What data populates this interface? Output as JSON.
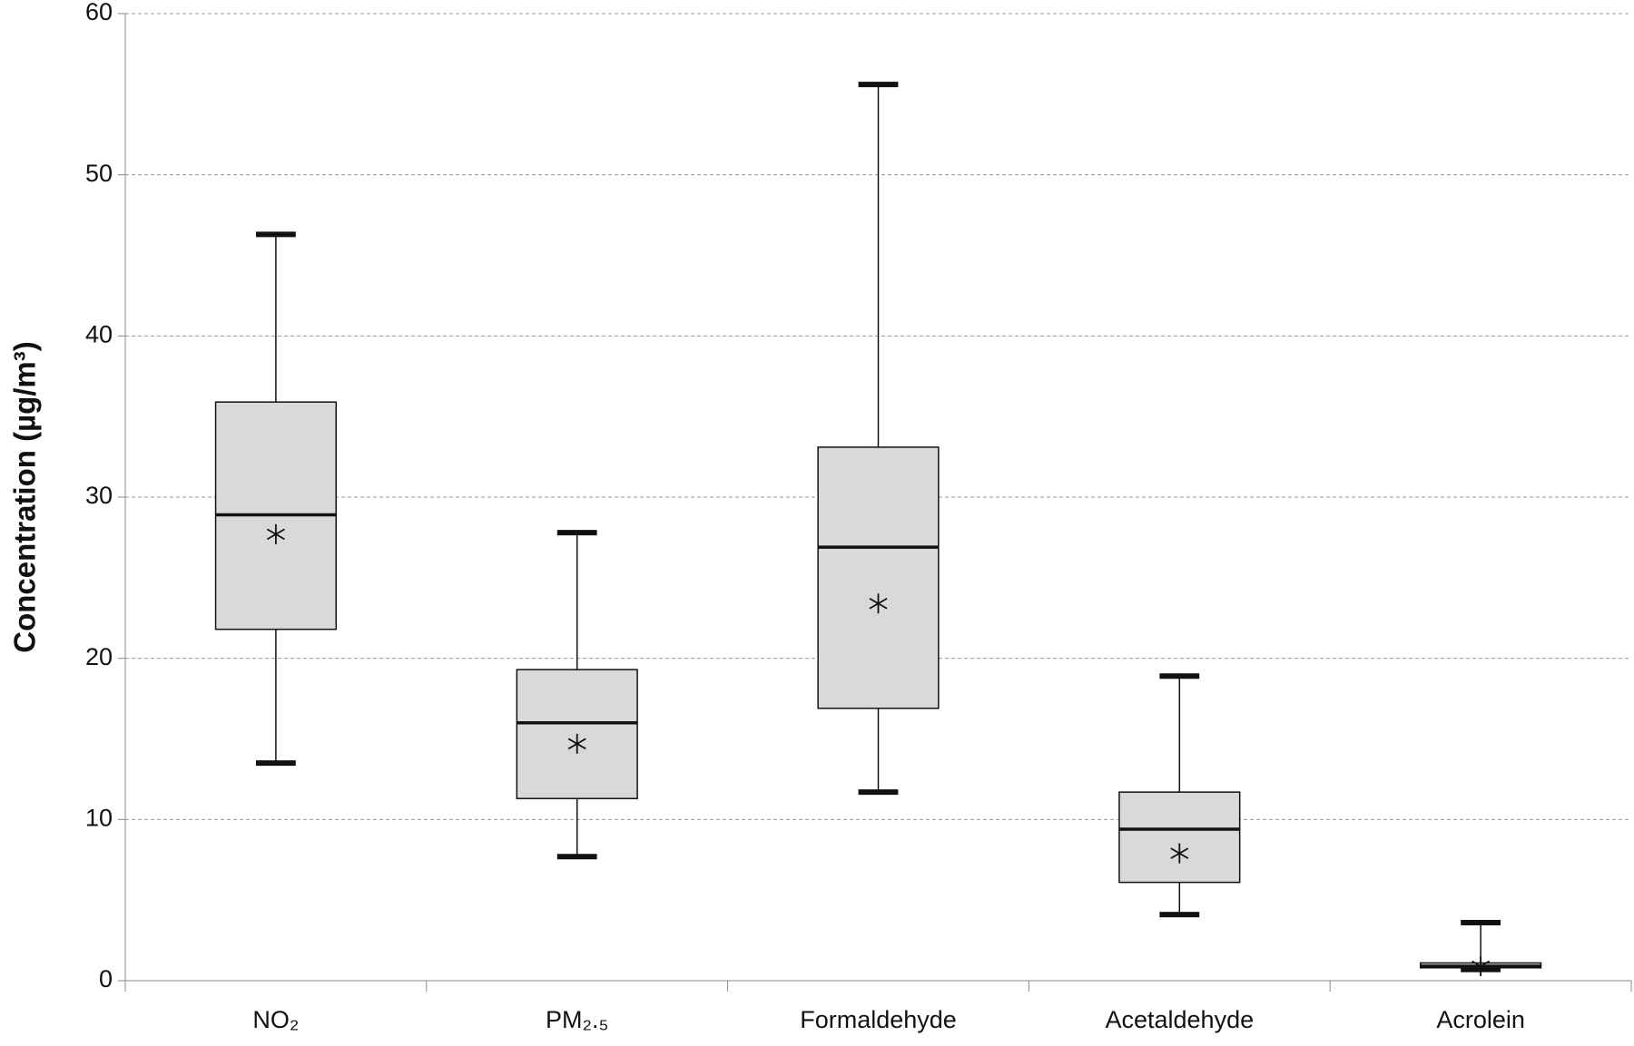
{
  "chart_data": {
    "type": "box",
    "ylabel": "Concentration (µg/m³)",
    "categories": [
      "NO₂",
      "PM₂.₅",
      "Formaldehyde",
      "Acetaldehyde",
      "Acrolein"
    ],
    "boxes": [
      {
        "min": 13.5,
        "q1": 21.8,
        "median": 28.9,
        "q3": 35.9,
        "max": 46.3,
        "mean": 27.7
      },
      {
        "min": 7.7,
        "q1": 11.3,
        "median": 16.0,
        "q3": 19.3,
        "max": 27.8,
        "mean": 14.7
      },
      {
        "min": 11.7,
        "q1": 16.9,
        "median": 26.9,
        "q3": 33.1,
        "max": 55.6,
        "mean": 23.4
      },
      {
        "min": 4.1,
        "q1": 6.1,
        "median": 9.4,
        "q3": 11.7,
        "max": 18.9,
        "mean": 7.9
      },
      {
        "min": 0.7,
        "q1": 0.8,
        "median": 0.9,
        "q3": 1.1,
        "max": 3.6,
        "mean": 0.9
      }
    ],
    "color": "#d9d9d9",
    "ylim": [
      0,
      60
    ],
    "yticks": [
      0,
      10,
      20,
      30,
      40,
      50,
      60
    ],
    "grid": true
  }
}
